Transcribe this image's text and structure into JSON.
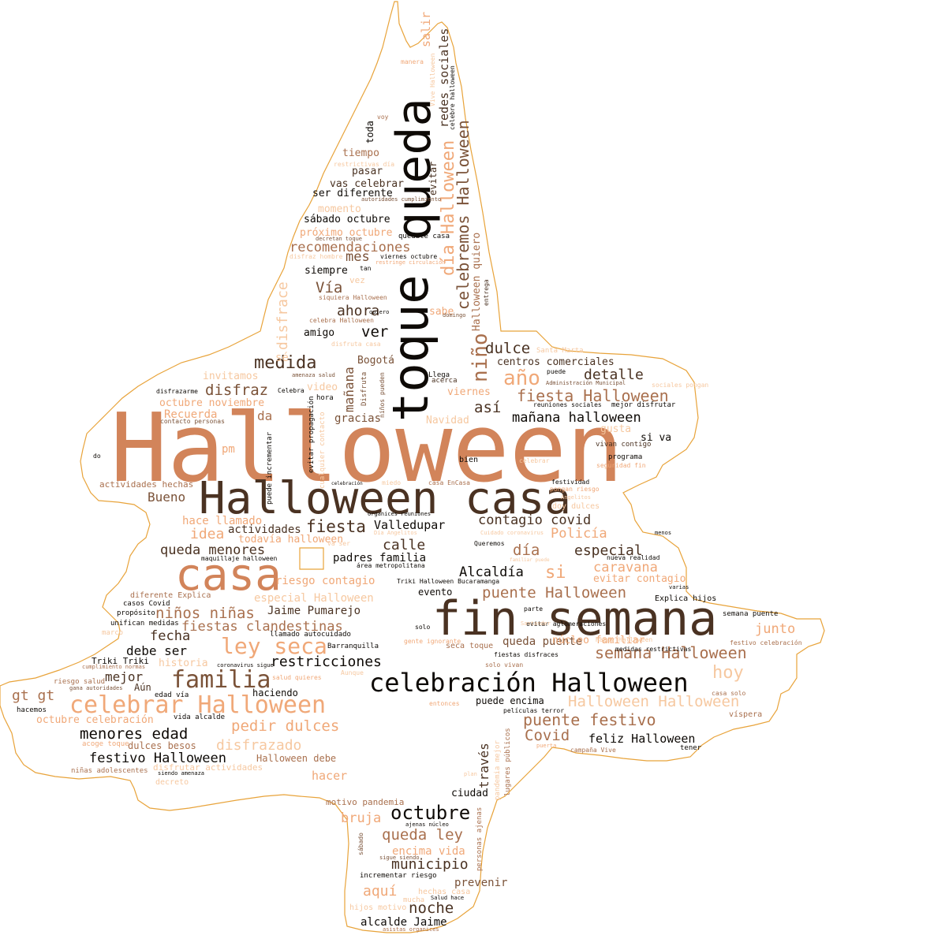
{
  "colors": {
    "outline": "#e8a33a",
    "palette": [
      "#d2845a",
      "#4a3222",
      "#0e0a06",
      "#f0a878",
      "#a9704e",
      "#f6c8a0",
      "#7a5238"
    ]
  },
  "words": {
    "halloween": "Halloween",
    "halloween_casa": "Halloween casa",
    "casa": "casa",
    "fin_semana": "fin semana",
    "toque": "toque",
    "queda": "queda",
    "celebracion_halloween": "celebración Halloween",
    "celebrar_halloween": "celebrar Halloween",
    "familia": "familia",
    "ley_seca": "ley seca",
    "nino": "niño",
    "ninos": "niños",
    "dia_halloween": "día Halloween",
    "celebremos_halloween": "celebremos Halloween",
    "redes_sociales": "redes sociales",
    "salir": "salir",
    "medida": "medida",
    "disfraz": "disfraz",
    "fiesta_halloween": "fiesta Halloween",
    "ano": "año",
    "dulce": "dulce",
    "centros_comerciales": "centros comerciales",
    "detalle": "detalle",
    "manana_halloween": "mañana halloween",
    "asi": "así",
    "recomendaciones": "recomendaciones",
    "mes": "mes",
    "via": "Vía",
    "ahora": "ahora",
    "ver": "ver",
    "amigo": "amigo",
    "siempre": "siempre",
    "disfrace": "disfrace",
    "manana": "mañana",
    "contagio_covid": "contagio covid",
    "fiesta": "fiesta",
    "valledupar": "Valledupar",
    "calle": "calle",
    "dia": "día",
    "especial": "especial",
    "policia": "Policía",
    "queda_menores": "queda menores",
    "padres_familia": "padres familia",
    "alcaldia": "Alcaldía",
    "si": "si",
    "caravana": "caravana",
    "evitar_contagio": "evitar contagio",
    "puente_halloween": "puente Halloween",
    "ninos_ninas": "niños niñas",
    "fiestas_clandestinas": "fiestas clandestinas",
    "fecha": "fecha",
    "debe_ser": "debe ser",
    "mejor": "mejor",
    "restricciones": "restricciones",
    "semana_halloween": "semana Halloween",
    "hoy": "hoy",
    "junto": "junto",
    "halloween_halloween": "Halloween Halloween",
    "puente_festivo": "puente festivo",
    "covid": "Covid",
    "feliz_halloween": "feliz Halloween",
    "menores_edad": "menores edad",
    "pedir_dulces": "pedir dulces",
    "festivo_halloween": "festivo Halloween",
    "disfrazado": "disfrazado",
    "octubre": "octubre",
    "queda_ley": "queda ley",
    "municipio": "municipio",
    "noche": "noche",
    "alcalde_jaime": "alcalde Jaime",
    "bruja": "bruja",
    "aqui": "aquí",
    "encima_vida": "encima vida",
    "prevenir": "prevenir",
    "hacer": "hacer",
    "traves": "través",
    "ciudad": "ciudad",
    "gt_gt": "gt gt",
    "octubre_celebracion": "octubre celebración",
    "bueno": "Bueno",
    "idea": "idea",
    "actividades": "actividades",
    "todavia_halloween": "todavía halloween",
    "hace_llamado": "hace llamado",
    "riesgo_contagio": "riesgo contagio",
    "especial_halloween": "especial Halloween",
    "jaime_pumarejo": "Jaime Pumarejo",
    "historia": "historia",
    "tiempo": "tiempo",
    "pasar": "pasar",
    "vas_celebrar": "vas celebrar",
    "ser_diferente": "ser diferente",
    "momento": "momento",
    "sabado_octubre": "sábado octubre",
    "proximo_octubre": "próximo octubre",
    "toda": "toda",
    "evitar": "evitar",
    "invitamos": "invitamos",
    "octubre_noviembre": "octubre noviembre",
    "recuerda": "Recuerda",
    "da": "da",
    "pm": "pm",
    "gracias": "gracias",
    "navidad": "Navidad",
    "video": "video",
    "bogota": "Bogotá",
    "viernes": "viernes",
    "gusta": "gusta",
    "si_va": "si va",
    "actividades_hechas": "actividades hechas",
    "diferente_explica": "diferente Explica",
    "casos_covid": "casos Covid",
    "proposito": "propósito",
    "unifican_medidas": "unifican medidas",
    "marco": "marco",
    "triki_triki": "Triki Triki",
    "riesgo_salud": "riesgo salud",
    "aun": "Aún",
    "hacemos": "hacemos",
    "vida_alcalde": "vida alcalde",
    "edad_via": "edad vía",
    "haciendo": "haciendo",
    "barranquilla": "Barranquilla",
    "llamado_autocuidado": "llamado autocuidado",
    "evento": "evento",
    "solo": "solo",
    "seca_toque": "seca toque",
    "queda_puente": "queda puente",
    "nucleo_familiar": "núcleo familiar",
    "puede_encima": "puede encima",
    "explica_hijos": "Explica hijos",
    "semana_puente": "semana puente",
    "halloween_debe": "Halloween debe",
    "dulces_besos": "dulces besos",
    "acoge_toque": "acoge toque",
    "ninas_adolescentes": "niñas adolescentes",
    "decreto": "decreto",
    "disfrutar_actividades": "disfrutar actividades",
    "motivo_pandemia": "motivo pandemia",
    "hijos_motivo": "hijos motivo",
    "mucha": "mucha",
    "hechas_casa": "hechas casa",
    "incrementar_riesgo": "incrementar riesgo",
    "vispera": "víspera",
    "tener": "tener",
    "campana_vive": "campaña Vive",
    "mejor_disfrutar": "mejor disfrutar",
    "reuniones_sociales": "reuniones sociales",
    "puede": "puede",
    "santa_marta": "Santa Marta",
    "vivan_contigo": "vivan contigo",
    "programa": "programa",
    "seguridad_fin": "seguridad fin",
    "bien": "bien",
    "celebrar": "celebrar",
    "festividad": "festividad",
    "pongan_riesgo": "pongan riesgo",
    "doy_dulces": "doy dulces",
    "nueva_realidad": "nueva realidad",
    "queremos": "Queremos",
    "llega": "Llega",
    "acerca": "acerca",
    "sabe": "sabe",
    "quedate_casa": "quédate casa",
    "viernes_octubre": "viernes octubre",
    "siquiera_halloween": "siquiera Halloween",
    "celebra_halloween": "celebra Halloween",
    "disfruta_casa": "disfruta casa",
    "vez": "vez",
    "disfrazarme": "disfrazarme",
    "celebra": "Celebra",
    "hora": "hora",
    "contacto_personas": "contacto personas",
    "maquillaje_halloween": "maquillaje halloween",
    "area_metropolitana": "área metropolitana",
    "triki_bucaramanga": "Triki Halloween Bucaramanga",
    "fiestas_disfraces": "fiestas disfraces",
    "gente_ignorante": "gente ignorante",
    "peliculas_terror": "películas terror",
    "medidas_restrictivas": "medidas restrictivas",
    "evitar_aglomeraciones": "evitar aglomeraciones",
    "solo_vivan": "solo vivan",
    "parte": "parte",
    "happy_halloween": "Happy Halloween",
    "festivo_celebracion": "festivo celebración",
    "casa_solo": "casa solo",
    "entonces": "entonces",
    "salud_quieres": "salud quieres",
    "aunque": "Aunque",
    "evitar_propagacion": "evitar propagación",
    "cualquier_contacto": "cualquier contacto",
    "puede_incrementar": "puede incrementar",
    "halloween_quiero": "Halloween quiero",
    "entrega": "entrega",
    "do": "do",
    "se": "sé",
    "diferente": "Disfruta",
    "ninos_pueden": "niños pueden",
    "pandemia_mejor": "pandemia mejor",
    "lugares_publicos": "lugares públicos",
    "personas_ajenas": "personas ajenas",
    "sabado": "sábado",
    "asistas_organices": "asistas organices",
    "vive_halloween": "Vive Halloween",
    "celebre_halloween": "celebre halloween",
    "manera": "manera",
    "voy": "voy",
    "restrictivas_dia": "restrictivas día",
    "decretan_toque": "decretan toque",
    "disfraz_hombre": "disfraz hombre",
    "tan": "tan",
    "quiero": "quiero",
    "restringe_circulacion": "restringe circulación",
    "autoridades_cumplimiento": "autoridades cumplimiento",
    "administracion_municipal": "Administración Municipal",
    "sociales_pongan": "sociales pongan",
    "amenaza_salud": "amenaza salud",
    "cumplimiento_normas": "cumplimiento normas",
    "gana_autoridades": "gana autoridades",
    "coronavirus_sigue": "coronavirus sigue",
    "cuidado_coronavirus": "Cuidado coronavirus",
    "organices_reuniones": "organices reuniones",
    "varias": "varias",
    "menos": "menos",
    "ajenas_nucleo": "ajenas núcleo",
    "sigue_siendo": "sigue siendo",
    "salud_hace": "Salud hace",
    "diz_angelitos": "Día Angelitos",
    "angelitos": "Angelitos",
    "santander": "Santander",
    "va_ser": "va ser",
    "domingo": "domingo",
    "celebracion": "celebración",
    "miedo": "miedo",
    "casa_encasa": "casa EnCasa",
    "familiar_puede": "familiar puede",
    "puerta": "puerta",
    "plan": "plan",
    "siendo_amenaza": "siendo amenaza",
    "acostumbrados": "costumbres casa",
    "cada_uno": "Todo Lugar",
    "disfrutemos": "disfrutemos",
    "vivo": "vivo",
    "horario": "horario",
    "fiesta_small": "todo evento",
    "nadie": "nadie",
    "pedimos": "pedimos",
    "hasta": "hasta",
    "protocolos": "protocolos",
    "ctg": "CTG",
    "aseo": "aseo"
  }
}
